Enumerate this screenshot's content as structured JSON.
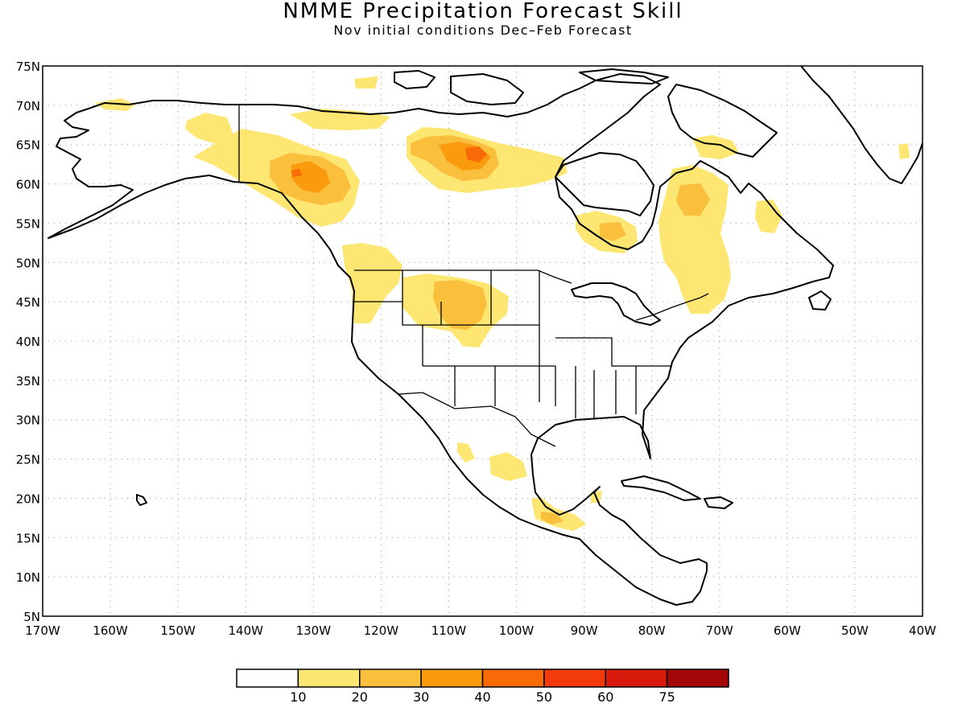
{
  "title": "NMME Precipitation Forecast Skill",
  "subtitle": "Nov initial conditions  Dec–Feb Forecast",
  "map": {
    "projection": "equirectangular",
    "lon_range": [
      -170,
      -40
    ],
    "lat_range": [
      5,
      75
    ],
    "lon_labels": [
      "170W",
      "160W",
      "150W",
      "140W",
      "130W",
      "120W",
      "110W",
      "100W",
      "90W",
      "80W",
      "70W",
      "60W",
      "50W",
      "40W"
    ],
    "lat_labels": [
      "75N",
      "70N",
      "65N",
      "60N",
      "55N",
      "50N",
      "45N",
      "40N",
      "35N",
      "30N",
      "25N",
      "20N",
      "15N",
      "10N",
      "5N"
    ],
    "grid": "dotted",
    "shaded_regions": [
      {
        "area": "Yukon / northern British Columbia",
        "lon": -130.5,
        "lat": 61,
        "level": 20
      },
      {
        "area": "Kivalliq / west Hudson Bay",
        "lon": -109,
        "lat": 64,
        "level": 20
      },
      {
        "area": "Central Alaska",
        "lon": -148,
        "lat": 64.5,
        "level": 10
      },
      {
        "area": "US northern Rockies",
        "lon": -110,
        "lat": 45,
        "level": 10
      },
      {
        "area": "Quebec / Labrador",
        "lon": -75,
        "lat": 57,
        "level": 10
      },
      {
        "area": "Northern Ontario",
        "lon": -89,
        "lat": 54,
        "level": 10
      },
      {
        "area": "Central Mexico",
        "lon": -101,
        "lat": 24.5,
        "level": 10
      },
      {
        "area": "Southern Mexico / Yucatan",
        "lon": -95,
        "lat": 17,
        "level": 10
      }
    ]
  },
  "colorbar": {
    "colors": [
      "#ffffff",
      "#fde772",
      "#fbbf3e",
      "#f99b0c",
      "#f76a06",
      "#f23a0c",
      "#d81a0c",
      "#a20808"
    ],
    "labels": [
      "10",
      "20",
      "30",
      "40",
      "50",
      "60",
      "75"
    ]
  }
}
